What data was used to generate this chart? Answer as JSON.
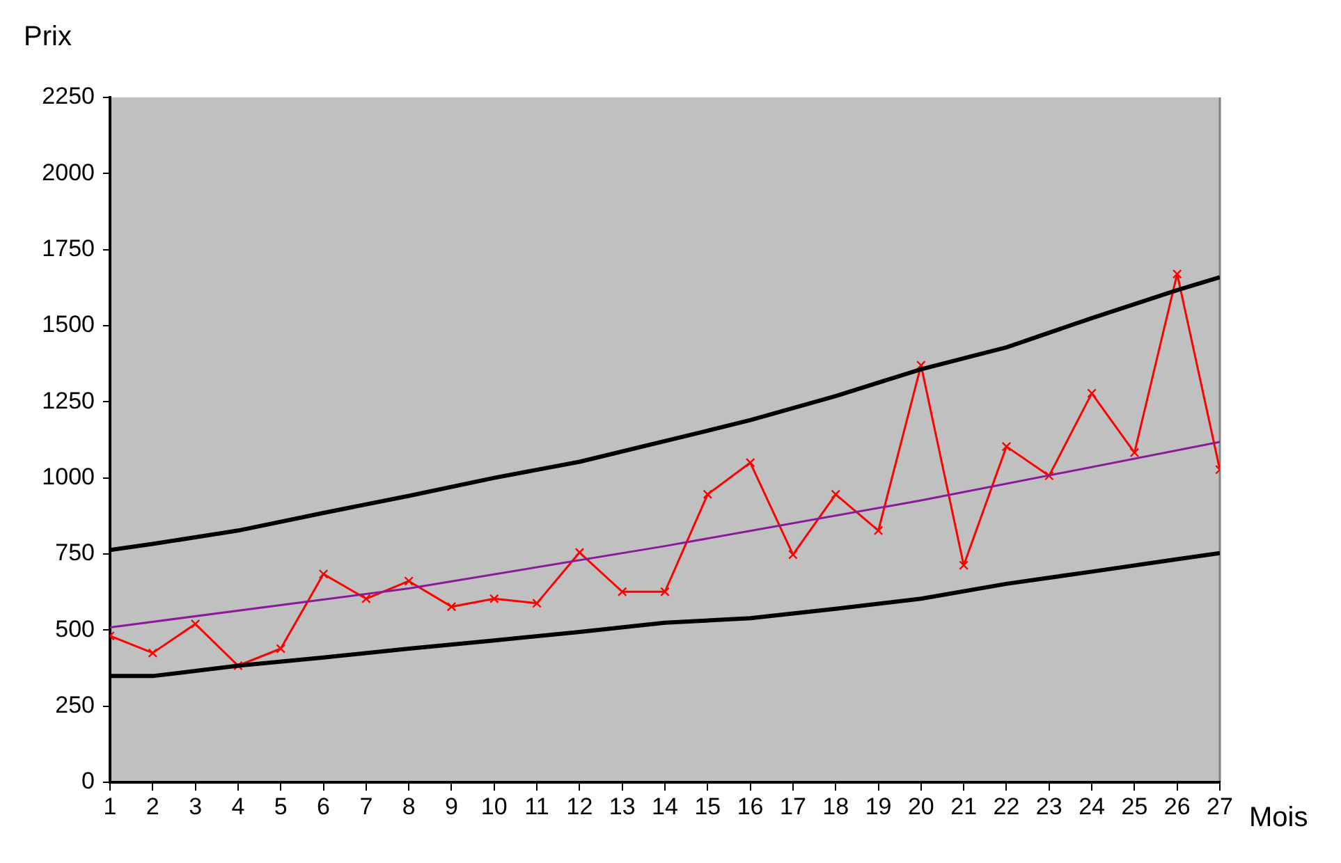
{
  "chart_data": {
    "type": "line",
    "xlabel": "Mois",
    "ylabel": "Prix",
    "xlim": [
      1,
      27
    ],
    "xticks": [
      1,
      2,
      3,
      4,
      5,
      6,
      7,
      8,
      9,
      10,
      11,
      12,
      13,
      14,
      15,
      16,
      17,
      18,
      19,
      20,
      21,
      22,
      23,
      24,
      25,
      26,
      27
    ],
    "ylim": [
      0,
      2250
    ],
    "yticks": [
      0,
      250,
      500,
      750,
      1000,
      1250,
      1500,
      1750,
      2000,
      2250
    ],
    "grid": false,
    "legend": false,
    "series": [
      {
        "color": "#000000",
        "marker": "none",
        "x": [
          1,
          2,
          4,
          6,
          8,
          10,
          12,
          15,
          16,
          18,
          20,
          22,
          24,
          26,
          27
        ],
        "values": [
          763,
          783,
          827,
          885,
          941,
          1000,
          1053,
          1155,
          1190,
          1269,
          1357,
          1429,
          1525,
          1617,
          1659
        ]
      },
      {
        "color": "#000000",
        "marker": "none",
        "x": [
          1,
          2,
          4,
          6,
          8,
          10,
          12,
          14,
          16,
          18,
          20,
          22,
          24,
          26,
          27
        ],
        "values": [
          349,
          349,
          383,
          410,
          439,
          466,
          494,
          524,
          539,
          570,
          603,
          652,
          692,
          733,
          753
        ]
      },
      {
        "color": "#8b1a9b",
        "marker": "none",
        "x": [
          1,
          8,
          14,
          20,
          27
        ],
        "values": [
          509,
          637,
          776,
          926,
          1118
        ]
      },
      {
        "color": "#ff0000",
        "marker": "cross",
        "x": [
          1,
          2,
          3,
          4,
          5,
          6,
          7,
          8,
          9,
          10,
          11,
          12,
          13,
          14,
          15,
          16,
          17,
          18,
          19,
          20,
          21,
          22,
          23,
          24,
          25,
          26,
          27
        ],
        "values": [
          481,
          425,
          520,
          383,
          439,
          684,
          603,
          661,
          577,
          603,
          588,
          755,
          626,
          626,
          946,
          1050,
          748,
          946,
          827,
          1370,
          713,
          1103,
          1007,
          1278,
          1083,
          1670,
          1027
        ]
      }
    ]
  }
}
